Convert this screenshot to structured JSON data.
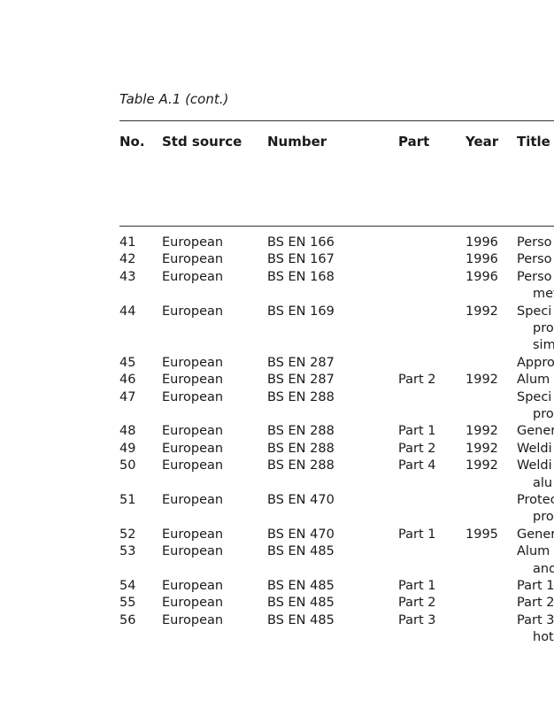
{
  "caption": "Table A.1 (cont.)",
  "headers": [
    "No.",
    "Std source",
    "Number",
    "Part",
    "Year",
    "Title"
  ],
  "rows": [
    {
      "no": "41",
      "src": "European",
      "num": "BS EN 166",
      "part": "",
      "year": "1996",
      "title": [
        "Perso"
      ]
    },
    {
      "no": "42",
      "src": "European",
      "num": "BS EN 167",
      "part": "",
      "year": "1996",
      "title": [
        "Perso"
      ]
    },
    {
      "no": "43",
      "src": "European",
      "num": "BS EN 168",
      "part": "",
      "year": "1996",
      "title": [
        "Perso",
        "met"
      ]
    },
    {
      "no": "44",
      "src": "European",
      "num": "BS EN 169",
      "part": "",
      "year": "1992",
      "title": [
        "Speci",
        "pro",
        "sim"
      ]
    },
    {
      "no": "45",
      "src": "European",
      "num": "BS EN 287",
      "part": "",
      "year": "",
      "title": [
        "Appro"
      ]
    },
    {
      "no": "46",
      "src": "European",
      "num": "BS EN 287",
      "part": "Part 2",
      "year": "1992",
      "title": [
        "Alum"
      ]
    },
    {
      "no": "47",
      "src": "European",
      "num": "BS EN 288",
      "part": "",
      "year": "",
      "title": [
        "Speci",
        "pro"
      ]
    },
    {
      "no": "48",
      "src": "European",
      "num": "BS EN 288",
      "part": "Part 1",
      "year": "1992",
      "title": [
        "Gener"
      ]
    },
    {
      "no": "49",
      "src": "European",
      "num": "BS EN 288",
      "part": "Part 2",
      "year": "1992",
      "title": [
        "Weldi"
      ]
    },
    {
      "no": "50",
      "src": "European",
      "num": "BS EN 288",
      "part": "Part 4",
      "year": "1992",
      "title": [
        "Weldi",
        "alu"
      ]
    },
    {
      "no": "51",
      "src": "European",
      "num": "BS EN 470",
      "part": "",
      "year": "",
      "title": [
        "Protec",
        "pro"
      ]
    },
    {
      "no": "52",
      "src": "European",
      "num": "BS EN 470",
      "part": "Part 1",
      "year": "1995",
      "title": [
        "Gener"
      ]
    },
    {
      "no": "53",
      "src": "European",
      "num": "BS EN 485",
      "part": "",
      "year": "",
      "title": [
        "Alum",
        "and"
      ]
    },
    {
      "no": "54",
      "src": "European",
      "num": "BS EN 485",
      "part": "Part 1",
      "year": "",
      "title": [
        "Part 1"
      ]
    },
    {
      "no": "55",
      "src": "European",
      "num": "BS EN 485",
      "part": "Part 2",
      "year": "",
      "title": [
        "Part 2"
      ]
    },
    {
      "no": "56",
      "src": "European",
      "num": "BS EN 485",
      "part": "Part 3",
      "year": "",
      "title": [
        "Part 3",
        "hot"
      ]
    }
  ]
}
